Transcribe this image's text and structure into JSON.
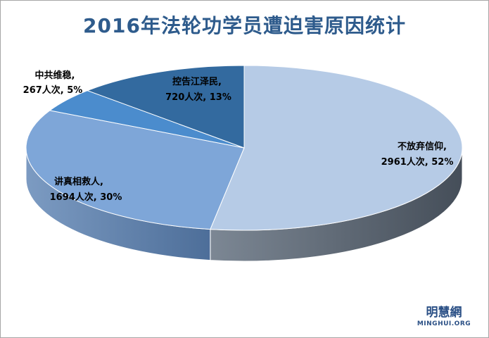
{
  "chart_data": {
    "type": "pie",
    "title": "2016年法轮功学员遭迫害原因统计",
    "slices": [
      {
        "label": "不放弃信仰,",
        "value_text": "2961人次, 52%",
        "value": 2961,
        "percent": 52,
        "color": "#b6cbe6"
      },
      {
        "label": "讲真相救人,",
        "value_text": "1694人次, 30%",
        "value": 1694,
        "percent": 30,
        "color": "#7ea6d8"
      },
      {
        "label": "中共维稳,",
        "value_text": "267人次, 5%",
        "value": 267,
        "percent": 5,
        "color": "#4b8ccd"
      },
      {
        "label": "控告江泽民,",
        "value_text": "720人次, 13%",
        "value": 720,
        "percent": 13,
        "color": "#336a9f"
      }
    ]
  },
  "watermark": {
    "cn": "明慧網",
    "en": "MINGHUI.ORG"
  }
}
